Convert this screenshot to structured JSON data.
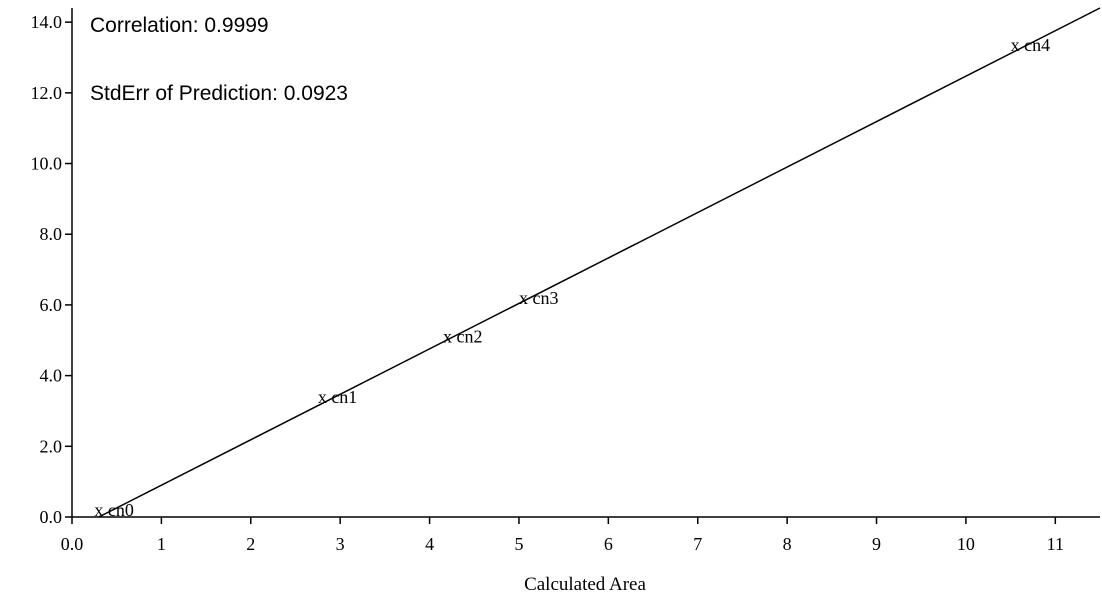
{
  "chart_data": {
    "type": "scatter",
    "xlabel": "Calculated Area",
    "ylabel": "",
    "xlim": [
      0,
      11.5
    ],
    "ylim": [
      0,
      14.4
    ],
    "x_ticks": [
      0,
      1,
      2,
      3,
      4,
      5,
      6,
      7,
      8,
      9,
      10,
      11
    ],
    "x_tick_labels": [
      "0.0",
      "1",
      "2",
      "3",
      "4",
      "5",
      "6",
      "7",
      "8",
      "9",
      "10",
      "11"
    ],
    "y_ticks": [
      0,
      2,
      4,
      6,
      8,
      10,
      12,
      14
    ],
    "y_tick_labels": [
      "0.0",
      "2.0",
      "4.0",
      "6.0",
      "8.0",
      "10.0",
      "12.0",
      "14.0"
    ],
    "grid": false,
    "annotations": {
      "correlation": "Correlation: 0.9999",
      "stderr": "StdErr of Prediction: 0.0923"
    },
    "regression_line": {
      "x": [
        0.3,
        11.5
      ],
      "y": [
        0.0,
        14.4
      ]
    },
    "points": [
      {
        "label": "x cn0",
        "x": 0.25,
        "y": 0.2
      },
      {
        "label": "x cn1",
        "x": 2.75,
        "y": 3.4
      },
      {
        "label": "x cn2",
        "x": 4.15,
        "y": 5.1
      },
      {
        "label": "x cn3",
        "x": 5.0,
        "y": 6.2
      },
      {
        "label": "x cn4",
        "x": 10.5,
        "y": 13.35
      }
    ]
  }
}
